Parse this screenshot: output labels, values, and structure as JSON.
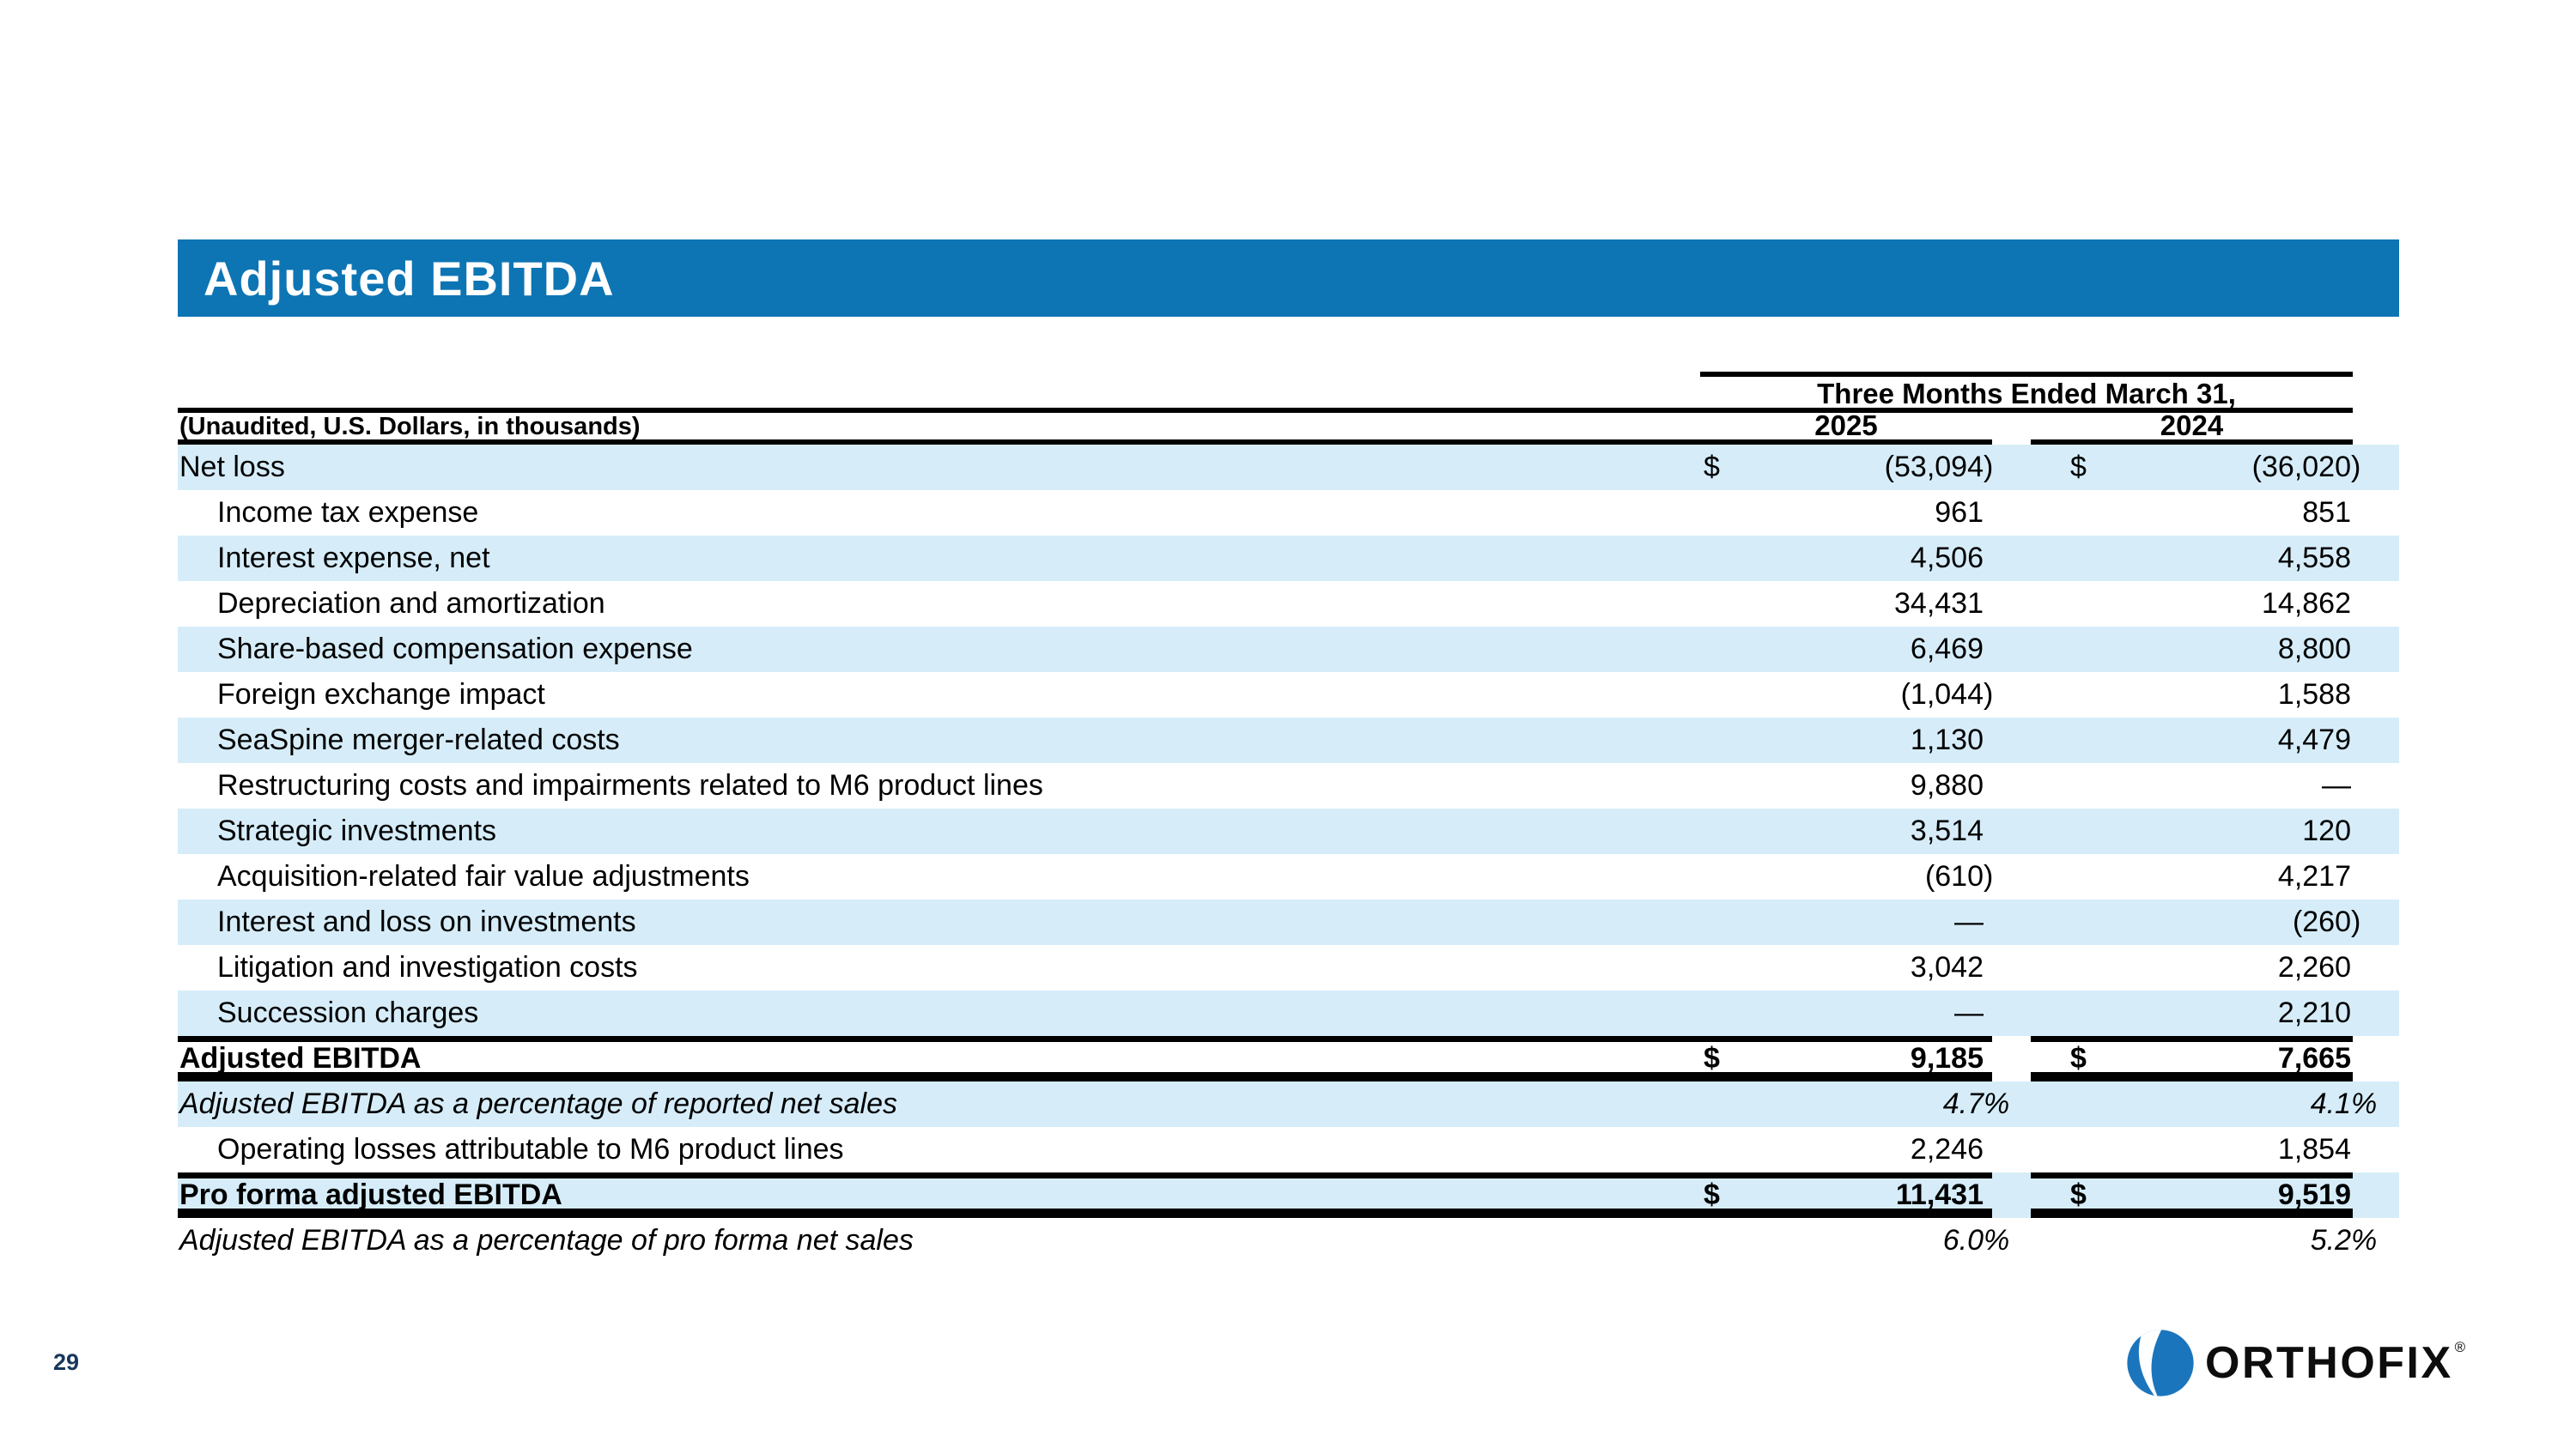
{
  "slide": {
    "title": "Adjusted EBITDA",
    "page_number": "29"
  },
  "logo": {
    "name": "ORTHOFIX",
    "registered_mark": "®",
    "ball_color": "#1b75bc"
  },
  "colors": {
    "header_bar_blue": "#0d75b4",
    "row_stripe_blue": "#d6edf9",
    "rule_black": "#000000",
    "page_number_navy": "#17375c"
  },
  "table": {
    "period_header": "Three Months Ended March 31,",
    "unit_note": "(Unaudited, U.S. Dollars, in thousands)",
    "columns": [
      "2025",
      "2024"
    ],
    "rows": [
      {
        "label": "Net loss",
        "indent": false,
        "style": "normal",
        "dollar": true,
        "v2025": "(53,094)",
        "v2024": "(36,020)",
        "stripe": true,
        "rule_top": false,
        "rule_bottom": false
      },
      {
        "label": "Income tax expense",
        "indent": true,
        "style": "normal",
        "dollar": false,
        "v2025": "961",
        "v2024": "851",
        "stripe": false,
        "rule_top": false,
        "rule_bottom": false
      },
      {
        "label": "Interest expense, net",
        "indent": true,
        "style": "normal",
        "dollar": false,
        "v2025": "4,506",
        "v2024": "4,558",
        "stripe": true,
        "rule_top": false,
        "rule_bottom": false
      },
      {
        "label": "Depreciation and amortization",
        "indent": true,
        "style": "normal",
        "dollar": false,
        "v2025": "34,431",
        "v2024": "14,862",
        "stripe": false,
        "rule_top": false,
        "rule_bottom": false
      },
      {
        "label": "Share-based compensation expense",
        "indent": true,
        "style": "normal",
        "dollar": false,
        "v2025": "6,469",
        "v2024": "8,800",
        "stripe": true,
        "rule_top": false,
        "rule_bottom": false
      },
      {
        "label": "Foreign exchange impact",
        "indent": true,
        "style": "normal",
        "dollar": false,
        "v2025": "(1,044)",
        "v2024": "1,588",
        "stripe": false,
        "rule_top": false,
        "rule_bottom": false
      },
      {
        "label": "SeaSpine merger-related costs",
        "indent": true,
        "style": "normal",
        "dollar": false,
        "v2025": "1,130",
        "v2024": "4,479",
        "stripe": true,
        "rule_top": false,
        "rule_bottom": false
      },
      {
        "label": "Restructuring costs and impairments related to M6 product lines",
        "indent": true,
        "style": "normal",
        "dollar": false,
        "v2025": "9,880",
        "v2024": "—",
        "stripe": false,
        "rule_top": false,
        "rule_bottom": false
      },
      {
        "label": "Strategic investments",
        "indent": true,
        "style": "normal",
        "dollar": false,
        "v2025": "3,514",
        "v2024": "120",
        "stripe": true,
        "rule_top": false,
        "rule_bottom": false
      },
      {
        "label": "Acquisition-related fair value adjustments",
        "indent": true,
        "style": "normal",
        "dollar": false,
        "v2025": "(610)",
        "v2024": "4,217",
        "stripe": false,
        "rule_top": false,
        "rule_bottom": false
      },
      {
        "label": "Interest and loss on investments",
        "indent": true,
        "style": "normal",
        "dollar": false,
        "v2025": "—",
        "v2024": "(260)",
        "stripe": true,
        "rule_top": false,
        "rule_bottom": false
      },
      {
        "label": "Litigation and investigation costs",
        "indent": true,
        "style": "normal",
        "dollar": false,
        "v2025": "3,042",
        "v2024": "2,260",
        "stripe": false,
        "rule_top": false,
        "rule_bottom": false
      },
      {
        "label": "Succession charges",
        "indent": true,
        "style": "normal",
        "dollar": false,
        "v2025": "—",
        "v2024": "2,210",
        "stripe": true,
        "rule_top": false,
        "rule_bottom": false
      },
      {
        "label": "Adjusted EBITDA",
        "indent": false,
        "style": "total",
        "dollar": true,
        "v2025": "9,185",
        "v2024": "7,665",
        "stripe": false,
        "rule_top": true,
        "rule_bottom": true
      },
      {
        "label": "Adjusted EBITDA as a percentage of reported net sales",
        "indent": false,
        "style": "italic",
        "dollar": false,
        "v2025": "4.7%",
        "v2024": "4.1%",
        "stripe": true,
        "rule_top": false,
        "rule_bottom": false
      },
      {
        "label": "Operating losses attributable to M6 product lines",
        "indent": true,
        "style": "normal",
        "dollar": false,
        "v2025": "2,246",
        "v2024": "1,854",
        "stripe": false,
        "rule_top": false,
        "rule_bottom": false
      },
      {
        "label": "Pro forma adjusted EBITDA",
        "indent": false,
        "style": "total",
        "dollar": true,
        "v2025": "11,431",
        "v2024": "9,519",
        "stripe": true,
        "rule_top": true,
        "rule_bottom": true
      },
      {
        "label": "Adjusted EBITDA as a percentage of pro forma net sales",
        "indent": false,
        "style": "italic",
        "dollar": false,
        "v2025": "6.0%",
        "v2024": "5.2%",
        "stripe": false,
        "rule_top": false,
        "rule_bottom": false
      }
    ]
  }
}
